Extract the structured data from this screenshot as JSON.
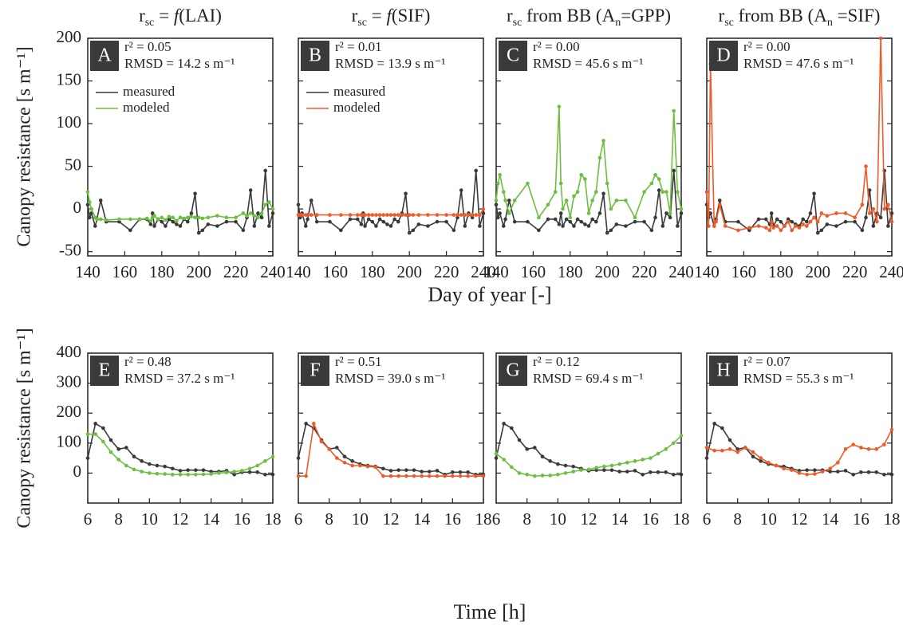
{
  "rows": [
    {
      "ylabel": "Canopy resistance [s m⁻¹]",
      "xlabel": "Day of year [-]"
    },
    {
      "ylabel": "Canopy resistance [s m⁻¹]",
      "xlabel": "Time [h]"
    }
  ],
  "chart_data": [
    {
      "type": "line",
      "title_parts": [
        {
          "text": "r"
        },
        {
          "text": "sc",
          "sub": true
        },
        {
          "text": " = "
        },
        {
          "text": "f",
          "italic": true
        },
        {
          "text": "(LAI)"
        }
      ],
      "panel": "A",
      "annotations": [
        "r² = 0.05",
        "RMSD = 14.2 s m⁻¹"
      ],
      "legend": true,
      "ytick_labels": true,
      "x": [
        140,
        141,
        142,
        144,
        145,
        147,
        150,
        157,
        163,
        168,
        172,
        174,
        175,
        176,
        178,
        180,
        182,
        184,
        186,
        188,
        190,
        192,
        194,
        196,
        198,
        200,
        202,
        205,
        210,
        215,
        220,
        224,
        226,
        228,
        230,
        232,
        234,
        236,
        238,
        240
      ],
      "series": [
        {
          "name": "measured",
          "color": "#3a3a3a",
          "values": [
            5,
            -10,
            -5,
            -20,
            -12,
            10,
            -15,
            -15,
            -25,
            -12,
            -12,
            -18,
            -5,
            -20,
            -12,
            -15,
            -20,
            -12,
            -15,
            -18,
            -20,
            -12,
            -15,
            -5,
            18,
            -28,
            -25,
            -18,
            -20,
            -15,
            -15,
            -25,
            -10,
            22,
            -20,
            -5,
            -10,
            45,
            -20,
            -5
          ]
        },
        {
          "name": "modeled",
          "color": "#6cbf3f",
          "values": [
            20,
            8,
            0,
            -10,
            -12,
            -12,
            -13,
            -12,
            -12,
            -12,
            -11,
            -14,
            -10,
            -8,
            -12,
            -10,
            -13,
            -9,
            -10,
            -14,
            -10,
            -11,
            -10,
            -9,
            -10,
            -10,
            -11,
            -10,
            -8,
            -10,
            -10,
            -5,
            -8,
            -5,
            -8,
            -10,
            -5,
            5,
            8,
            0
          ]
        }
      ],
      "xlim": [
        140,
        240
      ],
      "ylim": [
        -55,
        200
      ],
      "xticks": [
        140,
        160,
        180,
        200,
        220,
        240
      ],
      "yticks": [
        -50,
        0,
        50,
        100,
        150,
        200
      ]
    },
    {
      "type": "line",
      "title_parts": [
        {
          "text": "r"
        },
        {
          "text": "sc",
          "sub": true
        },
        {
          "text": " = "
        },
        {
          "text": "f",
          "italic": true
        },
        {
          "text": "(SIF)"
        }
      ],
      "panel": "B",
      "annotations": [
        "r² = 0.01",
        "RMSD = 13.9 s m⁻¹"
      ],
      "legend": true,
      "ytick_labels": false,
      "x": [
        140,
        141,
        142,
        144,
        145,
        147,
        150,
        157,
        163,
        168,
        172,
        174,
        175,
        176,
        178,
        180,
        182,
        184,
        186,
        188,
        190,
        192,
        194,
        196,
        198,
        200,
        202,
        205,
        210,
        215,
        220,
        224,
        226,
        228,
        230,
        232,
        234,
        236,
        238,
        240
      ],
      "series": [
        {
          "name": "measured",
          "color": "#3a3a3a",
          "values": [
            5,
            -10,
            -5,
            -20,
            -12,
            10,
            -15,
            -15,
            -25,
            -12,
            -12,
            -18,
            -5,
            -20,
            -12,
            -15,
            -20,
            -12,
            -15,
            -18,
            -20,
            -12,
            -15,
            -5,
            18,
            -28,
            -25,
            -18,
            -20,
            -15,
            -15,
            -25,
            -10,
            22,
            -20,
            -5,
            -10,
            45,
            -20,
            -5
          ]
        },
        {
          "name": "modeled",
          "color": "#f05a28",
          "values": [
            -7,
            -7,
            -7,
            -7,
            -7,
            -7,
            -7,
            -7,
            -7,
            -7,
            -7,
            -7,
            -7,
            -7,
            -7,
            -7,
            -7,
            -7,
            -7,
            -7,
            -7,
            -7,
            -7,
            -7,
            -7,
            -7,
            -7,
            -7,
            -7,
            -7,
            -7,
            -7,
            -7,
            -7,
            -7,
            -7,
            -7,
            -7,
            -7,
            0
          ]
        }
      ],
      "xlim": [
        140,
        240
      ],
      "ylim": [
        -55,
        200
      ],
      "xticks": [
        140,
        160,
        180,
        200,
        220,
        240
      ],
      "yticks": [
        -50,
        0,
        50,
        100,
        150,
        200
      ]
    },
    {
      "type": "line",
      "title_parts": [
        {
          "text": "r"
        },
        {
          "text": "sc",
          "sub": true
        },
        {
          "text": " from BB (A"
        },
        {
          "text": "n",
          "sub": true
        },
        {
          "text": "=GPP)"
        }
      ],
      "panel": "C",
      "annotations": [
        "r² = 0.00",
        "RMSD = 45.6 s m⁻¹"
      ],
      "legend": false,
      "ytick_labels": false,
      "x": [
        140,
        141,
        142,
        144,
        145,
        147,
        150,
        157,
        163,
        168,
        172,
        174,
        175,
        176,
        178,
        180,
        182,
        184,
        186,
        188,
        190,
        192,
        194,
        196,
        198,
        200,
        202,
        205,
        210,
        215,
        220,
        224,
        226,
        228,
        230,
        232,
        234,
        236,
        238,
        240
      ],
      "series": [
        {
          "color": "#3a3a3a",
          "values": [
            5,
            -10,
            -5,
            -20,
            -12,
            10,
            -15,
            -15,
            -25,
            -12,
            -12,
            -18,
            -5,
            -20,
            -12,
            -15,
            -20,
            -12,
            -15,
            -18,
            -20,
            -12,
            -15,
            -5,
            18,
            -28,
            -25,
            -18,
            -20,
            -15,
            -15,
            -25,
            -10,
            22,
            -20,
            -5,
            -10,
            45,
            -20,
            -5
          ]
        },
        {
          "color": "#6cbf3f",
          "values": [
            10,
            30,
            40,
            20,
            10,
            -5,
            10,
            30,
            -10,
            5,
            20,
            120,
            30,
            0,
            10,
            -10,
            15,
            20,
            40,
            35,
            -5,
            10,
            20,
            60,
            80,
            30,
            0,
            10,
            10,
            -10,
            20,
            30,
            40,
            35,
            20,
            20,
            -5,
            115,
            20,
            0
          ]
        }
      ],
      "xlim": [
        140,
        240
      ],
      "ylim": [
        -55,
        200
      ],
      "xticks": [
        140,
        160,
        180,
        200,
        220,
        240
      ],
      "yticks": [
        -50,
        0,
        50,
        100,
        150,
        200
      ]
    },
    {
      "type": "line",
      "title_parts": [
        {
          "text": "r"
        },
        {
          "text": "sc",
          "sub": true
        },
        {
          "text": " from BB (A"
        },
        {
          "text": "n",
          "sub": true
        },
        {
          "text": " =SIF)"
        }
      ],
      "panel": "D",
      "annotations": [
        "r² = 0.00",
        "RMSD = 47.6 s m⁻¹"
      ],
      "legend": false,
      "ytick_labels": false,
      "x": [
        140,
        141,
        142,
        144,
        145,
        147,
        150,
        157,
        163,
        168,
        172,
        174,
        175,
        176,
        178,
        180,
        182,
        184,
        186,
        188,
        190,
        192,
        194,
        196,
        198,
        200,
        202,
        205,
        210,
        215,
        220,
        224,
        226,
        228,
        230,
        232,
        234,
        236,
        238,
        240
      ],
      "series": [
        {
          "color": "#3a3a3a",
          "values": [
            5,
            -10,
            -5,
            -20,
            -12,
            10,
            -15,
            -15,
            -25,
            -12,
            -12,
            -18,
            -5,
            -20,
            -12,
            -15,
            -20,
            -12,
            -15,
            -18,
            -20,
            -12,
            -15,
            -5,
            18,
            -28,
            -25,
            -18,
            -20,
            -15,
            -15,
            -25,
            -10,
            22,
            -20,
            -5,
            -10,
            45,
            -20,
            -5
          ]
        },
        {
          "color": "#f05a28",
          "values": [
            20,
            -20,
            170,
            -20,
            -15,
            5,
            -20,
            -25,
            -22,
            -20,
            -22,
            -25,
            -15,
            -22,
            -20,
            -25,
            -20,
            -15,
            -25,
            -20,
            -22,
            -18,
            -20,
            -15,
            -10,
            -15,
            -5,
            -8,
            -5,
            -5,
            -10,
            5,
            50,
            -5,
            0,
            -15,
            200,
            0,
            5,
            -15
          ]
        }
      ],
      "xlim": [
        140,
        240
      ],
      "ylim": [
        -55,
        200
      ],
      "xticks": [
        140,
        160,
        180,
        200,
        220,
        240
      ],
      "yticks": [
        -50,
        0,
        50,
        100,
        150,
        200
      ]
    },
    {
      "type": "line",
      "panel": "E",
      "annotations": [
        "r² = 0.48",
        "RMSD = 37.2 s m⁻¹"
      ],
      "legend": false,
      "ytick_labels": true,
      "x": [
        6,
        6.5,
        7,
        7.5,
        8,
        8.5,
        9,
        9.5,
        10,
        10.5,
        11,
        11.5,
        12,
        12.5,
        13,
        13.5,
        14,
        14.5,
        15,
        15.5,
        16,
        16.5,
        17,
        17.5,
        18
      ],
      "series": [
        {
          "color": "#3a3a3a",
          "values": [
            50,
            165,
            150,
            110,
            80,
            85,
            55,
            40,
            30,
            25,
            22,
            15,
            8,
            10,
            10,
            10,
            5,
            5,
            8,
            -5,
            3,
            3,
            3,
            -5,
            -5
          ]
        },
        {
          "color": "#6cbf3f",
          "values": [
            130,
            130,
            105,
            70,
            45,
            25,
            12,
            5,
            0,
            -2,
            -3,
            -5,
            -5,
            -5,
            -5,
            -4,
            -3,
            0,
            2,
            5,
            8,
            15,
            25,
            40,
            55
          ]
        }
      ],
      "xlim": [
        6,
        18
      ],
      "ylim": [
        -100,
        400
      ],
      "xticks": [
        6,
        8,
        10,
        12,
        14,
        16,
        18
      ],
      "yticks": [
        0,
        100,
        200,
        300,
        400
      ]
    },
    {
      "type": "line",
      "panel": "F",
      "annotations": [
        "r² = 0.51",
        "RMSD = 39.0 s m⁻¹"
      ],
      "legend": false,
      "ytick_labels": false,
      "x": [
        6,
        6.5,
        7,
        7.5,
        8,
        8.5,
        9,
        9.5,
        10,
        10.5,
        11,
        11.5,
        12,
        12.5,
        13,
        13.5,
        14,
        14.5,
        15,
        15.5,
        16,
        16.5,
        17,
        17.5,
        18
      ],
      "series": [
        {
          "color": "#3a3a3a",
          "values": [
            50,
            165,
            150,
            110,
            80,
            85,
            55,
            40,
            30,
            25,
            22,
            15,
            8,
            10,
            10,
            10,
            5,
            5,
            8,
            -5,
            3,
            3,
            3,
            -5,
            -5
          ]
        },
        {
          "color": "#f05a28",
          "values": [
            -10,
            -10,
            165,
            105,
            80,
            50,
            35,
            25,
            25,
            22,
            20,
            -10,
            -10,
            -10,
            -10,
            -10,
            -10,
            -10,
            -10,
            -10,
            -10,
            -10,
            -10,
            -10,
            -10
          ]
        }
      ],
      "xlim": [
        6,
        18
      ],
      "ylim": [
        -100,
        400
      ],
      "xticks": [
        6,
        8,
        10,
        12,
        14,
        16,
        18
      ],
      "yticks": [
        0,
        100,
        200,
        300,
        400
      ]
    },
    {
      "type": "line",
      "panel": "G",
      "annotations": [
        "r² = 0.12",
        "RMSD = 69.4 s m⁻¹"
      ],
      "legend": false,
      "ytick_labels": false,
      "x": [
        6,
        6.5,
        7,
        7.5,
        8,
        8.5,
        9,
        9.5,
        10,
        10.5,
        11,
        11.5,
        12,
        12.5,
        13,
        13.5,
        14,
        14.5,
        15,
        15.5,
        16,
        16.5,
        17,
        17.5,
        18
      ],
      "series": [
        {
          "color": "#3a3a3a",
          "values": [
            50,
            165,
            150,
            110,
            80,
            85,
            55,
            40,
            30,
            25,
            22,
            15,
            8,
            10,
            10,
            10,
            5,
            5,
            8,
            -5,
            3,
            3,
            3,
            -5,
            -5
          ]
        },
        {
          "color": "#6cbf3f",
          "values": [
            65,
            45,
            20,
            0,
            -5,
            -10,
            -8,
            -8,
            -5,
            0,
            5,
            10,
            12,
            18,
            22,
            25,
            30,
            35,
            40,
            45,
            50,
            65,
            80,
            100,
            125
          ]
        }
      ],
      "xlim": [
        6,
        18
      ],
      "ylim": [
        -100,
        400
      ],
      "xticks": [
        6,
        8,
        10,
        12,
        14,
        16,
        18
      ],
      "yticks": [
        0,
        100,
        200,
        300,
        400
      ]
    },
    {
      "type": "line",
      "panel": "H",
      "annotations": [
        "r² = 0.07",
        "RMSD = 55.3 s m⁻¹"
      ],
      "legend": false,
      "ytick_labels": false,
      "x": [
        6,
        6.5,
        7,
        7.5,
        8,
        8.5,
        9,
        9.5,
        10,
        10.5,
        11,
        11.5,
        12,
        12.5,
        13,
        13.5,
        14,
        14.5,
        15,
        15.5,
        16,
        16.5,
        17,
        17.5,
        18
      ],
      "series": [
        {
          "color": "#3a3a3a",
          "values": [
            50,
            165,
            150,
            110,
            80,
            85,
            55,
            40,
            30,
            25,
            22,
            15,
            8,
            10,
            10,
            10,
            5,
            5,
            8,
            -5,
            3,
            3,
            3,
            -5,
            -5
          ]
        },
        {
          "color": "#f05a28",
          "values": [
            85,
            75,
            75,
            80,
            70,
            85,
            70,
            50,
            35,
            25,
            15,
            10,
            0,
            -5,
            -3,
            5,
            15,
            35,
            80,
            95,
            85,
            80,
            80,
            95,
            145
          ]
        }
      ],
      "xlim": [
        6,
        18
      ],
      "ylim": [
        -100,
        400
      ],
      "xticks": [
        6,
        8,
        10,
        12,
        14,
        16,
        18
      ],
      "yticks": [
        0,
        100,
        200,
        300,
        400
      ]
    }
  ]
}
